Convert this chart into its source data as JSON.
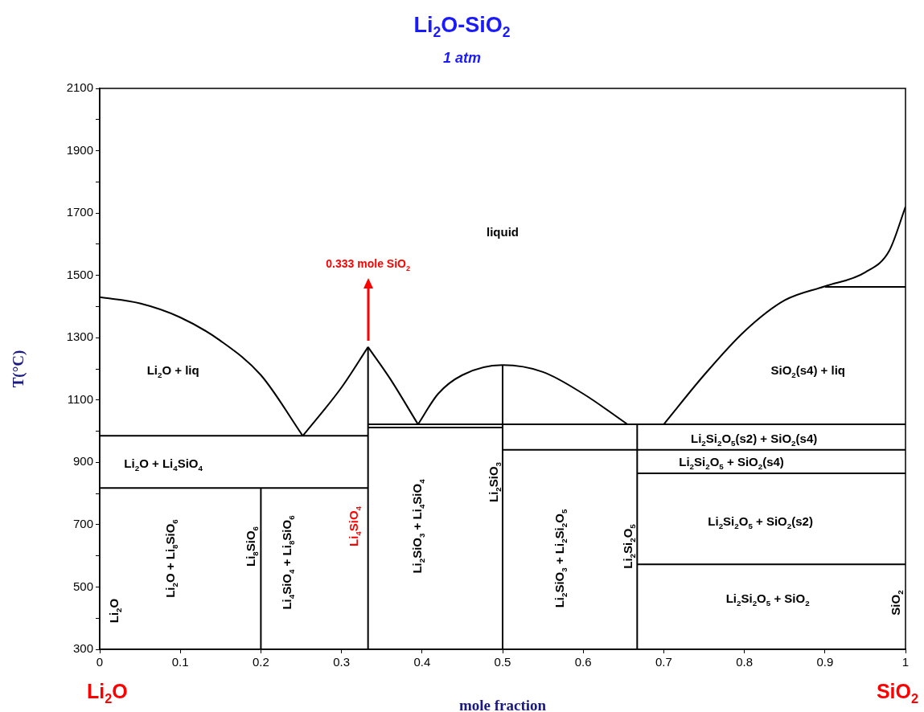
{
  "chart_data": {
    "type": "line",
    "title": "Li$_{2}$O-SiO$_{2}$",
    "subtitle": "1 atm",
    "xlabel": "mole fraction",
    "ylabel": "T(°C)",
    "xlim": [
      0,
      1
    ],
    "xticks": [
      0,
      0.1,
      0.2,
      0.3,
      0.4,
      0.5,
      0.6,
      0.7,
      0.8,
      0.9,
      1
    ],
    "ylim": [
      300,
      2100
    ],
    "yticks": [
      300,
      {
        "value": 400,
        "label": null
      },
      500,
      {
        "value": 600,
        "label": null
      },
      700,
      {
        "value": 800,
        "label": null
      },
      900,
      {
        "value": 1000,
        "label": null
      },
      1100,
      {
        "value": 1200,
        "label": null
      },
      1300,
      {
        "value": 1400,
        "label": null
      },
      1500,
      {
        "value": 1600,
        "label": null
      },
      1700,
      {
        "value": 1800,
        "label": null
      },
      1900,
      {
        "value": 2000,
        "label": null
      },
      2100
    ],
    "grid": false,
    "legend": false,
    "marker": "none",
    "line_style": "solid",
    "series": [
      {
        "color": "#000000",
        "x": [
          0,
          0.05,
          0.1,
          0.15,
          0.2,
          0.252
        ],
        "values": [
          1430,
          1410,
          1365,
          1290,
          1180,
          985
        ]
      },
      {
        "color": "#000000",
        "x": [
          0.252,
          0.3,
          0.333
        ],
        "values": [
          985,
          1140,
          1270
        ]
      },
      {
        "color": "#000000",
        "x": [
          0.333,
          0.36,
          0.395
        ],
        "values": [
          1270,
          1170,
          1022
        ]
      },
      {
        "color": "#000000",
        "x": [
          0.395,
          0.42,
          0.45,
          0.5,
          0.55,
          0.6,
          0.655
        ],
        "values": [
          1022,
          1120,
          1180,
          1212,
          1190,
          1120,
          1022
        ]
      },
      {
        "color": "#000000",
        "x": [
          0.7,
          0.75,
          0.8,
          0.85,
          0.9,
          0.95,
          0.98,
          1
        ],
        "values": [
          1022,
          1180,
          1320,
          1420,
          1465,
          1510,
          1580,
          1720
        ]
      },
      {
        "color": "#000000",
        "x": [
          0.9,
          1
        ],
        "values": [
          1463,
          1463
        ]
      },
      {
        "color": "#000000",
        "x": [
          0,
          0.333
        ],
        "values": [
          985,
          985
        ]
      },
      {
        "color": "#000000",
        "x": [
          0,
          0.333
        ],
        "values": [
          818,
          818
        ]
      },
      {
        "color": "#000000",
        "x": [
          0.2,
          0.2
        ],
        "values": [
          300,
          818
        ]
      },
      {
        "color": "#000000",
        "x": [
          0.333,
          0.333
        ],
        "values": [
          300,
          1270
        ]
      },
      {
        "color": "#000000",
        "x": [
          0.333,
          1
        ],
        "values": [
          1022,
          1022
        ]
      },
      {
        "color": "#000000",
        "x": [
          0.333,
          0.5
        ],
        "values": [
          1012,
          1012
        ]
      },
      {
        "color": "#000000",
        "x": [
          0.5,
          0.5
        ],
        "values": [
          300,
          1212
        ]
      },
      {
        "color": "#000000",
        "x": [
          0.5,
          1
        ],
        "values": [
          940,
          940
        ]
      },
      {
        "color": "#000000",
        "x": [
          0.667,
          0.667
        ],
        "values": [
          300,
          1022
        ]
      },
      {
        "color": "#000000",
        "x": [
          0.667,
          1
        ],
        "values": [
          865,
          865
        ]
      },
      {
        "color": "#000000",
        "x": [
          0.667,
          1
        ],
        "values": [
          573,
          573
        ]
      }
    ],
    "annotations": [
      "Li$_{2}$O",
      "SiO$_{2}$",
      "liquid",
      "0.333 mole SiO$_{2}$",
      "Li$_{2}$O + liq",
      "SiO$_{2}$(s4) + liq",
      "Li$_{2}$O + Li$_{4}$SiO$_{4}$",
      "Li$_{2}$Si$_{2}$O$_{5}$(s2) + SiO$_{2}$(s4)",
      "Li$_{2}$Si$_{2}$O$_{5}$ + SiO$_{2}$(s4)",
      "Li$_{2}$Si$_{2}$O$_{5}$ + SiO$_{2}$(s2)",
      "Li$_{2}$Si$_{2}$O$_{5}$ + SiO$_{2}$",
      "Li$_{2}$O",
      "Li$_{2}$O + Li$_{8}$SiO$_{6}$",
      "Li$_{8}$SiO$_{6}$",
      "Li$_{4}$SiO$_{4}$ + Li$_{8}$SiO$_{6}$",
      "Li$_{4}$SiO$_{4}$",
      "Li$_{2}$SiO$_{3}$ + Li$_{4}$SiO$_{4}$",
      "Li$_{2}$SiO$_{3}$",
      "Li$_{2}$SiO$_{3}$ + Li$_{2}$Si$_{2}$O$_{5}$",
      "Li$_{2}$Si$_{2}$O$_{5}$",
      "SiO$_{2}$"
    ]
  }
}
